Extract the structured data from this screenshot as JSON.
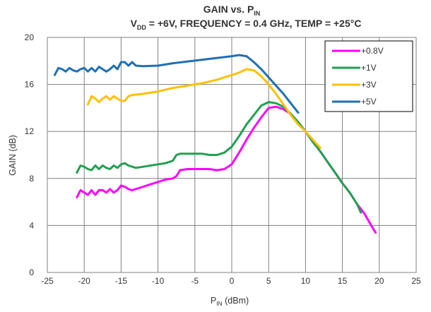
{
  "chart_data": {
    "type": "line",
    "title": {
      "line1": {
        "main": "GAIN vs. P",
        "sub": "IN"
      },
      "line2": {
        "v": "V",
        "vsub": "DD",
        "rest": " = +6V, FREQUENCY = 0.4 GHz, TEMP = +25°C"
      }
    },
    "xlabel": {
      "main": "P",
      "sub": "IN",
      "rest": " (dBm)"
    },
    "ylabel": "GAIN (dB)",
    "xlim": [
      -25,
      25
    ],
    "ylim": [
      0,
      20
    ],
    "x_ticks": [
      -25,
      -20,
      -15,
      -10,
      -5,
      0,
      5,
      10,
      15,
      20,
      25
    ],
    "y_ticks": [
      0,
      4,
      8,
      12,
      16,
      20
    ],
    "grid": true,
    "legend_position": "top-right",
    "series": [
      {
        "name": "+0.8V",
        "color": "#ff00ff",
        "points": [
          [
            -21,
            6.4
          ],
          [
            -20.5,
            7.0
          ],
          [
            -20,
            6.8
          ],
          [
            -19.5,
            6.6
          ],
          [
            -19,
            7.0
          ],
          [
            -18.5,
            6.6
          ],
          [
            -18,
            7.0
          ],
          [
            -17.5,
            7.0
          ],
          [
            -17,
            6.8
          ],
          [
            -16.5,
            7.1
          ],
          [
            -16,
            6.8
          ],
          [
            -15.5,
            7.0
          ],
          [
            -15,
            7.4
          ],
          [
            -14.5,
            7.3
          ],
          [
            -14,
            7.1
          ],
          [
            -13.5,
            7.0
          ],
          [
            -13,
            7.1
          ],
          [
            -12,
            7.3
          ],
          [
            -11,
            7.5
          ],
          [
            -10,
            7.7
          ],
          [
            -9,
            7.9
          ],
          [
            -8,
            8.0
          ],
          [
            -7.5,
            8.2
          ],
          [
            -7,
            8.7
          ],
          [
            -6,
            8.8
          ],
          [
            -5,
            8.8
          ],
          [
            -4,
            8.8
          ],
          [
            -3,
            8.8
          ],
          [
            -2,
            8.7
          ],
          [
            -1,
            8.8
          ],
          [
            0,
            9.2
          ],
          [
            1,
            10.2
          ],
          [
            2,
            11.3
          ],
          [
            3,
            12.3
          ],
          [
            4,
            13.2
          ],
          [
            5,
            14.0
          ],
          [
            6,
            14.1
          ],
          [
            7,
            13.9
          ],
          [
            8,
            13.5
          ],
          [
            9,
            12.8
          ],
          [
            10,
            12.0
          ],
          [
            11,
            11.1
          ],
          [
            12,
            10.3
          ],
          [
            13,
            9.4
          ],
          [
            14,
            8.5
          ],
          [
            15,
            7.6
          ],
          [
            16,
            6.8
          ],
          [
            17,
            5.8
          ],
          [
            18,
            5.0
          ],
          [
            19,
            3.9
          ],
          [
            19.5,
            3.4
          ]
        ]
      },
      {
        "name": "+1V",
        "color": "#21a050",
        "points": [
          [
            -21,
            8.5
          ],
          [
            -20.5,
            9.1
          ],
          [
            -20,
            9.0
          ],
          [
            -19.5,
            8.8
          ],
          [
            -19,
            8.7
          ],
          [
            -18.5,
            9.1
          ],
          [
            -18,
            8.8
          ],
          [
            -17.5,
            9.1
          ],
          [
            -17,
            8.9
          ],
          [
            -16.5,
            8.8
          ],
          [
            -16,
            9.1
          ],
          [
            -15.5,
            8.9
          ],
          [
            -15,
            9.2
          ],
          [
            -14.5,
            9.3
          ],
          [
            -14,
            9.1
          ],
          [
            -13,
            8.9
          ],
          [
            -12,
            9.0
          ],
          [
            -11,
            9.1
          ],
          [
            -10,
            9.2
          ],
          [
            -9,
            9.3
          ],
          [
            -8,
            9.5
          ],
          [
            -7.5,
            10.0
          ],
          [
            -7,
            10.1
          ],
          [
            -6,
            10.1
          ],
          [
            -5,
            10.1
          ],
          [
            -4,
            10.1
          ],
          [
            -3,
            10.0
          ],
          [
            -2,
            10.0
          ],
          [
            -1,
            10.2
          ],
          [
            0,
            10.7
          ],
          [
            1,
            11.6
          ],
          [
            2,
            12.6
          ],
          [
            3,
            13.4
          ],
          [
            4,
            14.2
          ],
          [
            5,
            14.5
          ],
          [
            6,
            14.4
          ],
          [
            7,
            14.1
          ],
          [
            8,
            13.5
          ],
          [
            9,
            12.8
          ],
          [
            10,
            12.0
          ],
          [
            11,
            11.1
          ],
          [
            12,
            10.3
          ],
          [
            13,
            9.4
          ],
          [
            14,
            8.5
          ],
          [
            15,
            7.6
          ],
          [
            16,
            6.8
          ],
          [
            17,
            5.8
          ],
          [
            17.5,
            5.1
          ]
        ]
      },
      {
        "name": "+3V",
        "color": "#ffc000",
        "points": [
          [
            -19.5,
            14.3
          ],
          [
            -19,
            15.0
          ],
          [
            -18.5,
            14.8
          ],
          [
            -18,
            14.5
          ],
          [
            -17.5,
            14.8
          ],
          [
            -17,
            15.0
          ],
          [
            -16.5,
            14.7
          ],
          [
            -16,
            15.0
          ],
          [
            -15.5,
            14.8
          ],
          [
            -15,
            14.6
          ],
          [
            -14.5,
            14.6
          ],
          [
            -14,
            15.0
          ],
          [
            -13.5,
            15.1
          ],
          [
            -12,
            15.2
          ],
          [
            -10,
            15.4
          ],
          [
            -8,
            15.7
          ],
          [
            -6,
            15.9
          ],
          [
            -4,
            16.1
          ],
          [
            -2,
            16.4
          ],
          [
            0,
            16.8
          ],
          [
            1,
            17.0
          ],
          [
            2,
            17.3
          ],
          [
            3,
            17.2
          ],
          [
            4,
            16.7
          ],
          [
            5,
            16.0
          ],
          [
            6,
            15.2
          ],
          [
            7,
            14.3
          ],
          [
            8,
            13.4
          ],
          [
            9,
            12.6
          ],
          [
            10,
            12.0
          ],
          [
            11,
            11.3
          ],
          [
            12,
            10.6
          ]
        ]
      },
      {
        "name": "+5V",
        "color": "#1f6fb5",
        "points": [
          [
            -24,
            16.8
          ],
          [
            -23.5,
            17.4
          ],
          [
            -23,
            17.3
          ],
          [
            -22.5,
            17.1
          ],
          [
            -22,
            17.4
          ],
          [
            -21.5,
            17.2
          ],
          [
            -21,
            17.1
          ],
          [
            -20.5,
            17.3
          ],
          [
            -20,
            17.4
          ],
          [
            -19.5,
            17.1
          ],
          [
            -19,
            17.4
          ],
          [
            -18.5,
            17.1
          ],
          [
            -18,
            17.5
          ],
          [
            -17.5,
            17.3
          ],
          [
            -17,
            17.1
          ],
          [
            -16.5,
            17.3
          ],
          [
            -16,
            17.6
          ],
          [
            -15.5,
            17.3
          ],
          [
            -15,
            17.9
          ],
          [
            -14.5,
            17.9
          ],
          [
            -14,
            17.6
          ],
          [
            -13.5,
            17.9
          ],
          [
            -13,
            17.6
          ],
          [
            -12,
            17.55
          ],
          [
            -10,
            17.6
          ],
          [
            -8,
            17.8
          ],
          [
            -6,
            17.95
          ],
          [
            -4,
            18.1
          ],
          [
            -2,
            18.25
          ],
          [
            0,
            18.4
          ],
          [
            1,
            18.5
          ],
          [
            2,
            18.4
          ],
          [
            3,
            17.9
          ],
          [
            4,
            17.3
          ],
          [
            5,
            16.6
          ],
          [
            6,
            15.9
          ],
          [
            7,
            15.2
          ],
          [
            8,
            14.4
          ],
          [
            9,
            13.6
          ]
        ]
      }
    ]
  }
}
